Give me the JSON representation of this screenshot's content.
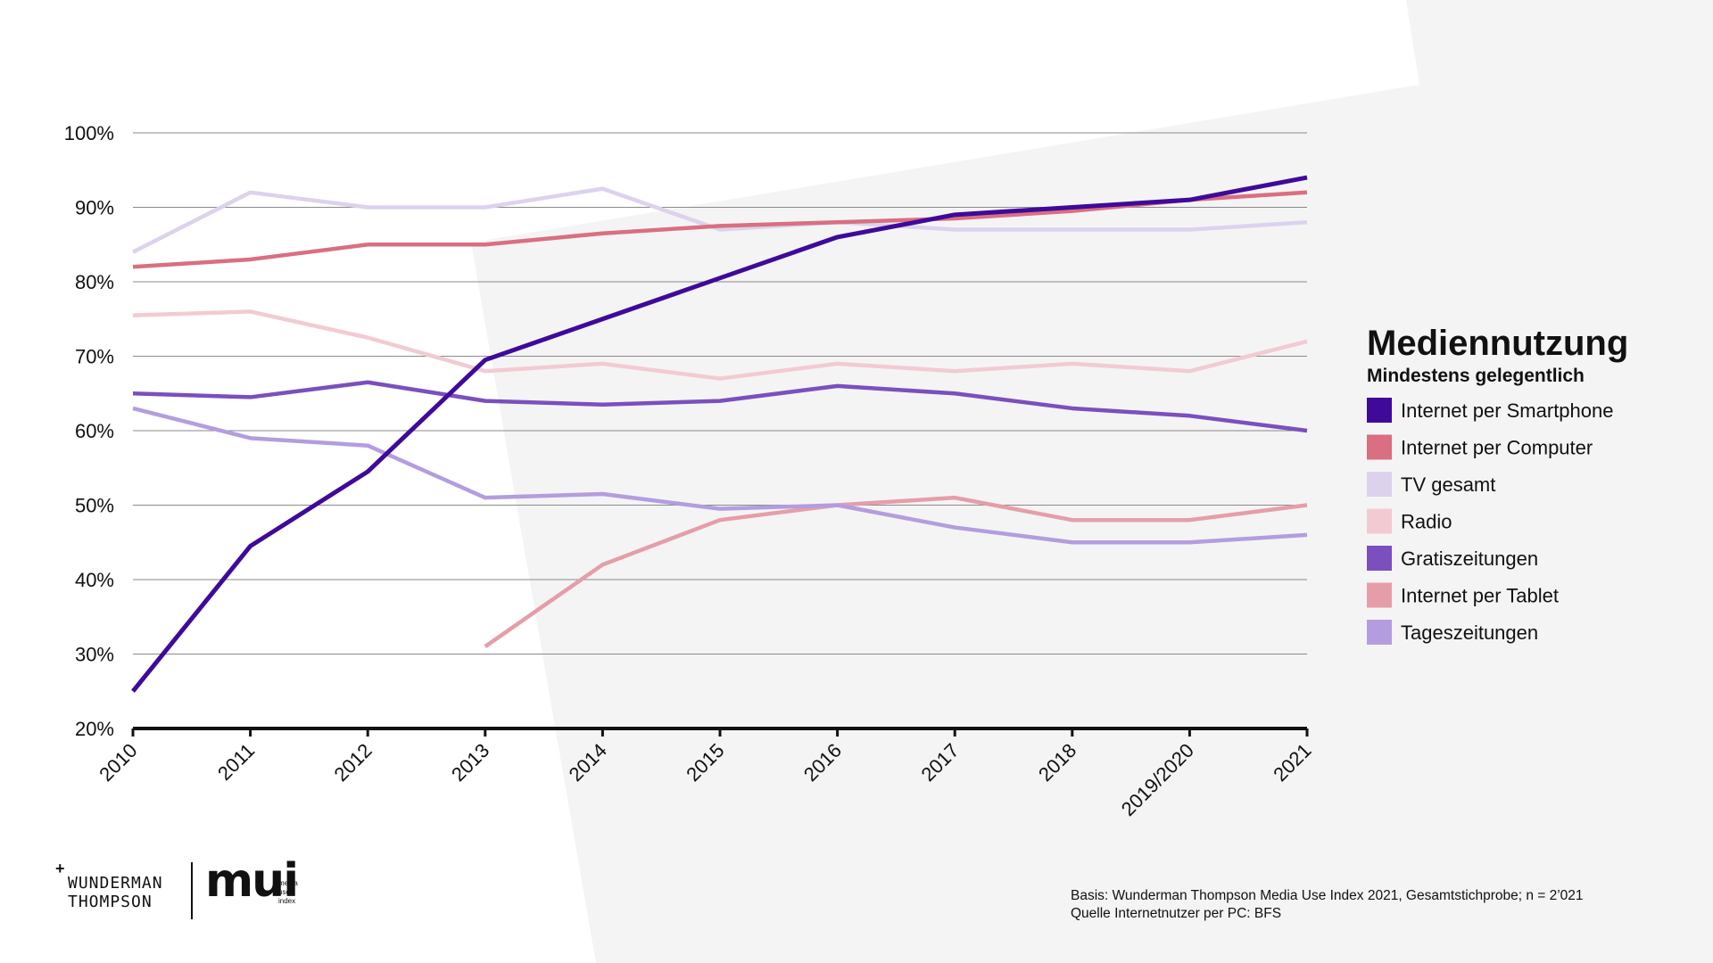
{
  "chart_data": {
    "type": "line",
    "title": "Mediennutzung",
    "subtitle": "Mindestens gelegentlich",
    "categories": [
      "2010",
      "2011",
      "2012",
      "2013",
      "2014",
      "2015",
      "2016",
      "2017",
      "2018",
      "2019/2020",
      "2021"
    ],
    "y_ticks": [
      "20%",
      "30%",
      "40%",
      "50%",
      "60%",
      "70%",
      "80%",
      "90%",
      "100%"
    ],
    "ylim": [
      20,
      100
    ],
    "grid": true,
    "legend_position": "right",
    "series": [
      {
        "name": "Internet per Smartphone",
        "color": "#3f0a9a",
        "values": [
          25,
          44.5,
          54.5,
          69.5,
          75,
          80.5,
          86,
          89,
          90,
          91,
          94
        ]
      },
      {
        "name": "Internet per Computer",
        "color": "#d96f80",
        "values": [
          82,
          83,
          85,
          85,
          86.5,
          87.5,
          88,
          88.5,
          89.5,
          91,
          92
        ]
      },
      {
        "name": "TV gesamt",
        "color": "#ddd2ee",
        "values": [
          84,
          92,
          90,
          90,
          92.5,
          87,
          88,
          87,
          87,
          87,
          88
        ]
      },
      {
        "name": "Radio",
        "color": "#f2cbd2",
        "values": [
          75.5,
          76,
          72.5,
          68,
          69,
          67,
          69,
          68,
          69,
          68,
          72
        ]
      },
      {
        "name": "Gratiszeitungen",
        "color": "#7b4fbe",
        "values": [
          65,
          64.5,
          66.5,
          64,
          63.5,
          64,
          66,
          65,
          63,
          62,
          60
        ]
      },
      {
        "name": "Internet per Tablet",
        "color": "#e59ea9",
        "values": [
          null,
          null,
          null,
          31,
          42,
          48,
          50,
          51,
          48,
          48,
          50
        ]
      },
      {
        "name": "Tageszeitungen",
        "color": "#b39ddf",
        "values": [
          63,
          59,
          58,
          51,
          51.5,
          49.5,
          50,
          47,
          45,
          45,
          46
        ]
      }
    ]
  },
  "footnote": {
    "line1": "Basis: Wunderman Thompson Media Use Index 2021, Gesamtstichprobe; n = 2’021",
    "line2": "Quelle Internetnutzer per PC: BFS"
  },
  "logos": {
    "wunderman_line1": "WUNDERMAN",
    "wunderman_line2": "THOMPSON",
    "mui_word": "mui",
    "mui_small": [
      "media",
      "use",
      "index"
    ]
  }
}
